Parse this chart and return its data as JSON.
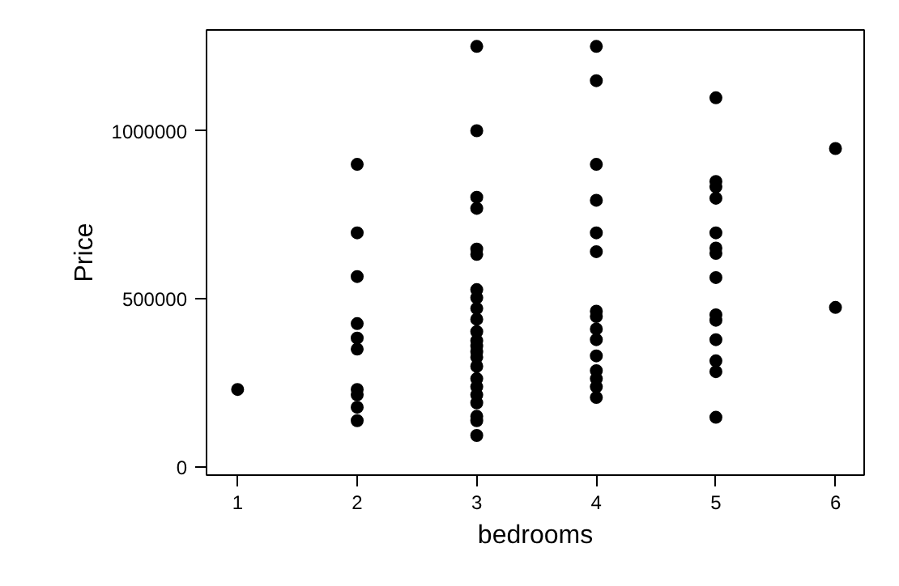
{
  "chart_data": {
    "type": "scatter",
    "xlabel": "bedrooms",
    "ylabel": "Price",
    "marker": "circle",
    "grid": false,
    "xlim": [
      0.74,
      6.24
    ],
    "xticks": [
      1,
      2,
      3,
      4,
      5,
      6
    ],
    "ylim": [
      -25000,
      1300000
    ],
    "yticks": [
      0,
      500000,
      1000000
    ],
    "series": [
      {
        "color": "#000000",
        "x": [
          1,
          2,
          2,
          2,
          2,
          2,
          2,
          2,
          2,
          2,
          2,
          3,
          3,
          3,
          3,
          3,
          3,
          3,
          3,
          3,
          3,
          3,
          3,
          3,
          3,
          3,
          3,
          3,
          3,
          3,
          3,
          3,
          3,
          3,
          4,
          4,
          4,
          4,
          4,
          4,
          4,
          4,
          4,
          4,
          4,
          4,
          4,
          4,
          4,
          5,
          5,
          5,
          5,
          5,
          5,
          5,
          5,
          5,
          5,
          5,
          5,
          5,
          5,
          6,
          6
        ],
        "values": [
          230000,
          900000,
          696000,
          566000,
          426000,
          383000,
          350000,
          230000,
          214000,
          177000,
          137000,
          1251000,
          1000000,
          802000,
          769000,
          648000,
          632000,
          527000,
          503000,
          471000,
          439000,
          402000,
          375000,
          359000,
          342000,
          326000,
          299000,
          262000,
          238000,
          214000,
          190000,
          150000,
          137000,
          93000,
          1251000,
          1149000,
          900000,
          793000,
          696000,
          640000,
          463000,
          447000,
          410000,
          378000,
          330000,
          286000,
          262000,
          238000,
          206000,
          1098000,
          849000,
          833000,
          799000,
          696000,
          651000,
          635000,
          563000,
          452000,
          436000,
          378000,
          315000,
          283000,
          147000,
          947000,
          474000
        ]
      }
    ]
  }
}
